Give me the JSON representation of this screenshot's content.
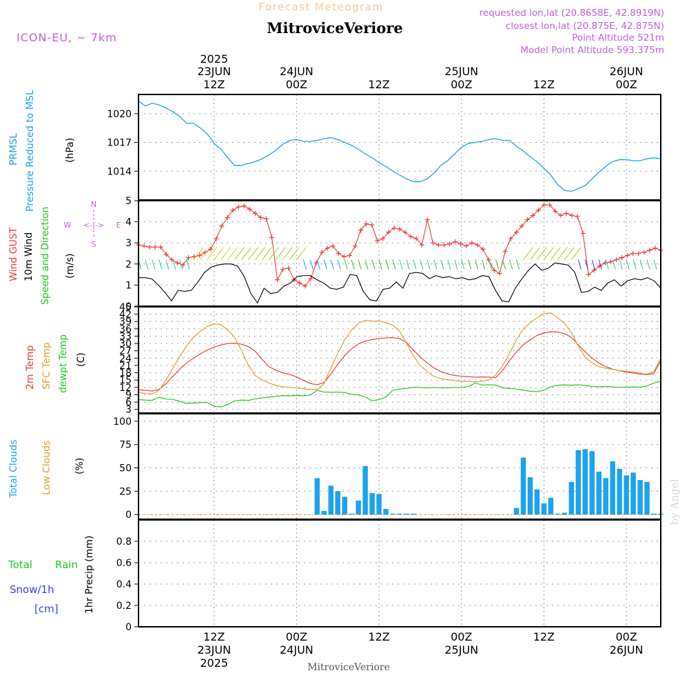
{
  "header": {
    "product_title": "Forecast Meteogram",
    "location": "MitroviceVeriore",
    "model": "ICON-EU, ~ 7km",
    "requested": "requested lon,lat (20.8658E, 42.8919N)",
    "closest": "closest lon,lat (20.875E, 42.875N)",
    "point_altitude": "Point Altitude 521m",
    "model_altitude": "Model Point Altitude 593.375m",
    "footer_location": "MitroviceVeriore",
    "watermark": "by Angel"
  },
  "colors": {
    "pressure": "#1ca3ec",
    "gust": "#f03c3c",
    "wind10m": "#000000",
    "wind_dir": "#1ec81e",
    "temp2m": "#e8403c",
    "sfc_temp": "#e0a030",
    "dewpoint": "#22c922",
    "total_clouds": "#1ca3ec",
    "low_clouds": "#e0a030",
    "rain": "#22c922",
    "snow": "#3c3cf0",
    "label_purple": "#c060e0"
  },
  "time_axis": {
    "top_ticks": [
      {
        "h": 12,
        "line1": "2025",
        "line2": "23JUN",
        "line3": "12Z"
      },
      {
        "h": 24,
        "line1": "",
        "line2": "24JUN",
        "line3": "00Z"
      },
      {
        "h": 36,
        "line1": "",
        "line2": "",
        "line3": "12Z"
      },
      {
        "h": 48,
        "line1": "",
        "line2": "25JUN",
        "line3": "00Z"
      },
      {
        "h": 60,
        "line1": "",
        "line2": "",
        "line3": "12Z"
      },
      {
        "h": 72,
        "line1": "",
        "line2": "26JUN",
        "line3": "00Z"
      }
    ],
    "bottom_ticks": [
      {
        "h": 12,
        "line1": "12Z",
        "line2": "23JUN",
        "line3": "2025"
      },
      {
        "h": 24,
        "line1": "00Z",
        "line2": "24JUN",
        "line3": ""
      },
      {
        "h": 36,
        "line1": "12Z",
        "line2": "",
        "line3": ""
      },
      {
        "h": 48,
        "line1": "00Z",
        "line2": "25JUN",
        "line3": ""
      },
      {
        "h": 60,
        "line1": "12Z",
        "line2": "",
        "line3": ""
      },
      {
        "h": 72,
        "line1": "00Z",
        "line2": "26JUN",
        "line3": ""
      }
    ]
  },
  "panel_labels": {
    "pressure": {
      "line1": "PRMSL",
      "line2": "Pressure Reduced to MSL",
      "unit": "(hPa)"
    },
    "wind": {
      "gust": "Wind GUST",
      "wind10": "10m Wind",
      "dir": "Speed and Direction",
      "unit": "(m/s)",
      "compass_n": "N",
      "compass_s": "S",
      "compass_w": "W",
      "compass_e": "E",
      "compass_arrow": "<-|->"
    },
    "temp": {
      "t2m": "2m Temp",
      "sfc": "SFC Temp",
      "dew": "dewpt Temp",
      "unit": "(C)"
    },
    "clouds": {
      "total": "Total Clouds",
      "low": "Low Clouds",
      "unit": "(%)"
    },
    "precip": {
      "rain_a": "Total",
      "rain_b": "Rain",
      "snow": "Snow/1h",
      "snow_unit": "[cm]",
      "axis": "1hr Precip (mm)"
    }
  },
  "chart_data": [
    {
      "type": "line",
      "name": "pressure",
      "x_range_hours": [
        1,
        77
      ],
      "ylim": [
        1011,
        1022
      ],
      "yticks": [
        1014,
        1017,
        1020
      ],
      "x": [
        1,
        2,
        3,
        4,
        5,
        6,
        7,
        8,
        9,
        10,
        11,
        12,
        13,
        14,
        15,
        16,
        17,
        18,
        19,
        20,
        21,
        22,
        23,
        24,
        25,
        26,
        27,
        28,
        29,
        30,
        31,
        32,
        33,
        34,
        35,
        36,
        37,
        38,
        39,
        40,
        41,
        42,
        43,
        44,
        45,
        46,
        47,
        48,
        49,
        50,
        51,
        52,
        53,
        54,
        55,
        56,
        57,
        58,
        59,
        60,
        61,
        62,
        63,
        64,
        65,
        66,
        67,
        68,
        69,
        70,
        71,
        72,
        73,
        74,
        75,
        76,
        77
      ],
      "series": [
        {
          "name": "PRMSL",
          "values": [
            1021.3,
            1020.8,
            1021.1,
            1020.9,
            1020.6,
            1020.2,
            1019.7,
            1019.0,
            1019.0,
            1018.5,
            1017.9,
            1016.9,
            1016.3,
            1015.4,
            1014.6,
            1014.6,
            1014.8,
            1015.0,
            1015.3,
            1015.7,
            1016.2,
            1016.8,
            1017.2,
            1017.3,
            1017.1,
            1017.1,
            1017.2,
            1017.4,
            1017.5,
            1017.3,
            1017.0,
            1016.7,
            1016.3,
            1015.8,
            1015.4,
            1014.9,
            1014.5,
            1014.0,
            1013.6,
            1013.2,
            1012.9,
            1012.9,
            1013.2,
            1013.8,
            1014.6,
            1015.1,
            1015.8,
            1016.5,
            1016.9,
            1017.0,
            1017.1,
            1017.3,
            1017.4,
            1017.2,
            1017.2,
            1016.6,
            1016.1,
            1015.5,
            1015.0,
            1014.3,
            1013.6,
            1012.6,
            1012.0,
            1011.9,
            1012.2,
            1012.5,
            1013.2,
            1013.9,
            1014.5,
            1015.0,
            1015.2,
            1015.2,
            1015.1,
            1015.1,
            1015.3,
            1015.4,
            1015.3
          ]
        }
      ]
    },
    {
      "type": "line",
      "name": "wind",
      "ylim": [
        0,
        5
      ],
      "yticks": [
        0,
        1,
        2,
        3,
        4,
        5
      ],
      "series": [
        {
          "name": "Wind GUST",
          "markers": "+",
          "values": [
            2.9,
            2.85,
            2.8,
            2.8,
            2.8,
            2.45,
            2.2,
            2.05,
            1.95,
            2.3,
            2.35,
            2.4,
            2.55,
            2.7,
            3.2,
            3.8,
            4.2,
            4.55,
            4.7,
            4.75,
            4.6,
            4.4,
            4.2,
            4.15,
            3.25,
            1.25,
            1.75,
            1.8,
            1.25,
            1.1,
            0.95,
            1.3,
            2.05,
            2.55,
            2.75,
            2.85,
            2.5,
            2.35,
            2.4,
            2.85,
            3.6,
            3.9,
            3.85,
            3.1,
            3.2,
            3.5,
            3.7,
            3.65,
            3.5,
            3.3,
            3.2,
            2.9,
            4.1,
            3.0,
            2.9,
            2.9,
            2.95,
            3.05,
            2.95,
            2.85,
            3.0,
            2.9,
            2.7,
            2.2,
            1.7,
            1.55,
            2.6,
            3.2,
            3.5,
            3.8,
            4.1,
            4.3,
            4.55,
            4.8,
            4.8,
            4.5,
            4.3,
            4.4,
            4.3,
            4.25,
            3.45,
            1.5,
            1.7,
            1.9,
            2.05,
            2.1,
            2.2,
            2.3,
            2.4,
            2.5,
            2.5,
            2.55,
            2.65,
            2.75,
            2.65
          ]
        },
        {
          "name": "10m Wind",
          "values": [
            1.35,
            1.35,
            1.3,
            1.0,
            0.65,
            0.25,
            0.75,
            0.7,
            0.75,
            1.15,
            1.6,
            1.85,
            1.95,
            2.0,
            2.0,
            1.9,
            1.4,
            0.6,
            0.15,
            0.85,
            0.6,
            0.65,
            0.95,
            1.1,
            1.4,
            1.45,
            1.45,
            1.25,
            1.1,
            0.85,
            0.8,
            0.9,
            1.5,
            1.45,
            0.7,
            0.3,
            0.25,
            0.8,
            0.85,
            1.15,
            0.85,
            1.55,
            1.6,
            1.55,
            1.3,
            1.45,
            1.35,
            1.4,
            1.3,
            1.35,
            1.25,
            1.3,
            1.45,
            1.4,
            0.75,
            0.25,
            0.2,
            0.85,
            1.3,
            1.7,
            2.0,
            1.7,
            1.8,
            2.05,
            2.0,
            1.95,
            1.6,
            0.65,
            0.7,
            0.9,
            0.75,
            1.1,
            1.25,
            0.95,
            1.2,
            1.3,
            1.25,
            1.35,
            1.2,
            0.85
          ]
        }
      ]
    },
    {
      "type": "line",
      "name": "temperature",
      "ylim": [
        1.5,
        45
      ],
      "yticks": [
        3,
        6,
        9,
        12,
        15,
        18,
        21,
        24,
        27,
        30,
        33,
        36,
        39,
        42,
        45
      ],
      "x": [
        1,
        2,
        3,
        4,
        5,
        6,
        7,
        8,
        9,
        10,
        11,
        12,
        13,
        14,
        15,
        16,
        17,
        18,
        19,
        20,
        21,
        22,
        23,
        24,
        25,
        26,
        27,
        28,
        29,
        30,
        31,
        32,
        33,
        34,
        35,
        36,
        37,
        38,
        39,
        40,
        41,
        42,
        43,
        44,
        45,
        46,
        47,
        48,
        49,
        50,
        51,
        52,
        53,
        54,
        55,
        56,
        57,
        58,
        59,
        60,
        61,
        62,
        63,
        64,
        65,
        66,
        67,
        68,
        69,
        70,
        71,
        72,
        73,
        74,
        75,
        76,
        77
      ],
      "series": [
        {
          "name": "2m Temp",
          "values": [
            11,
            10.8,
            10.5,
            11.2,
            13.5,
            16.5,
            19.5,
            22,
            24,
            25.8,
            27.3,
            28.5,
            29.4,
            30,
            30.1,
            29.7,
            28.7,
            26.8,
            23.5,
            20.5,
            19,
            18,
            17.3,
            16.3,
            14.9,
            13.6,
            13.1,
            14,
            17.5,
            21.5,
            25,
            27.8,
            29.8,
            31,
            31.6,
            32,
            32.3,
            32.4,
            32,
            30.4,
            27.3,
            24.5,
            22,
            20,
            18.5,
            17.5,
            16.9,
            16.6,
            16.4,
            16.2,
            16.3,
            16.2,
            16,
            19,
            23,
            26.5,
            29.5,
            31.5,
            33.3,
            34.3,
            34.8,
            34.7,
            34,
            32.5,
            29.5,
            26.5,
            24,
            22,
            20.5,
            19.5,
            18.8,
            18.3,
            17.9,
            17.5,
            17.2,
            17.7,
            23
          ]
        },
        {
          "name": "SFC Temp",
          "values": [
            10,
            9.5,
            9.3,
            10.8,
            15,
            20,
            24.5,
            29,
            32.5,
            35,
            37,
            38,
            37.7,
            35.5,
            32.5,
            27,
            21,
            16.8,
            15,
            13.8,
            12.8,
            12.2,
            12,
            11.8,
            11.5,
            11.1,
            11.2,
            13.5,
            20,
            26,
            31.5,
            35.5,
            38.2,
            39.5,
            39.1,
            39.2,
            38.5,
            37.5,
            35,
            30,
            25,
            21,
            18.5,
            16.5,
            15.6,
            15.2,
            14.8,
            14.5,
            14.4,
            14.3,
            14.5,
            15,
            17.2,
            21,
            26,
            31.5,
            36,
            38.5,
            40.5,
            42.3,
            42.5,
            40.5,
            38.2,
            34.5,
            29,
            24.5,
            22,
            20.5,
            19.8,
            19.4,
            18.9,
            18.6,
            18.3,
            17.8,
            17.4,
            18.5,
            24
          ]
        },
        {
          "name": "dewpt Temp",
          "values": [
            7,
            6.8,
            6.7,
            8,
            7.2,
            7.1,
            6.3,
            5.5,
            5.6,
            5.8,
            5.8,
            4.3,
            4.0,
            5.0,
            6.5,
            6.8,
            6.7,
            7.3,
            7.7,
            8.0,
            8.3,
            8.6,
            8.6,
            8.7,
            8.6,
            8.9,
            10.8,
            10.1,
            10.0,
            10.1,
            9.9,
            9.2,
            8.9,
            8.1,
            6.5,
            7.0,
            8.1,
            10.8,
            11.3,
            11.6,
            12.1,
            12.0,
            11.8,
            12.0,
            11.8,
            11.8,
            12.0,
            11.9,
            12.4,
            13.8,
            13.0,
            13.1,
            13.0,
            11.8,
            11.6,
            11.3,
            10.9,
            10.4,
            10.3,
            10.8,
            12.3,
            12.9,
            13.0,
            12.9,
            13.1,
            12.8,
            12.4,
            12.2,
            12.4,
            12.2,
            12.0,
            12.1,
            12.2,
            12.1,
            12.6,
            13.8,
            14.5
          ]
        }
      ]
    },
    {
      "type": "bar",
      "name": "clouds",
      "ylim": [
        -5,
        108
      ],
      "yticks": [
        0,
        25,
        50,
        75,
        100
      ],
      "x_hours": [
        27,
        28,
        29,
        30,
        31,
        32,
        33,
        34,
        35,
        36,
        37,
        38,
        39,
        40,
        41,
        56,
        57,
        58,
        59,
        60,
        61,
        62,
        63,
        64,
        65,
        66,
        67,
        68,
        69,
        70,
        71,
        72,
        73,
        74,
        75,
        76,
        77
      ],
      "series": [
        {
          "name": "Total Clouds",
          "values": [
            39,
            4,
            31,
            25,
            19,
            1,
            15,
            52,
            23,
            22,
            6,
            1,
            1,
            1,
            1,
            7,
            61,
            40,
            27,
            12,
            18,
            1,
            2,
            35,
            69,
            70,
            68,
            46,
            39,
            57,
            49,
            42,
            45,
            37,
            35,
            1,
            1
          ]
        },
        {
          "name": "Low Clouds",
          "values": [
            0,
            0,
            0,
            0,
            0,
            0,
            0,
            0,
            0,
            0,
            0,
            0,
            0,
            0,
            0,
            0,
            0,
            0,
            0,
            0,
            0,
            0,
            0,
            0,
            0,
            0,
            0,
            0,
            0,
            0,
            0,
            0,
            0,
            0,
            0,
            0,
            0
          ]
        }
      ]
    },
    {
      "type": "bar",
      "name": "precipitation",
      "ylim": [
        0,
        1.0
      ],
      "yticks": [
        0,
        0.2,
        0.4,
        0.6,
        0.8
      ],
      "series": [
        {
          "name": "Total Rain",
          "values": []
        },
        {
          "name": "Snow/1h",
          "values": []
        }
      ]
    }
  ]
}
